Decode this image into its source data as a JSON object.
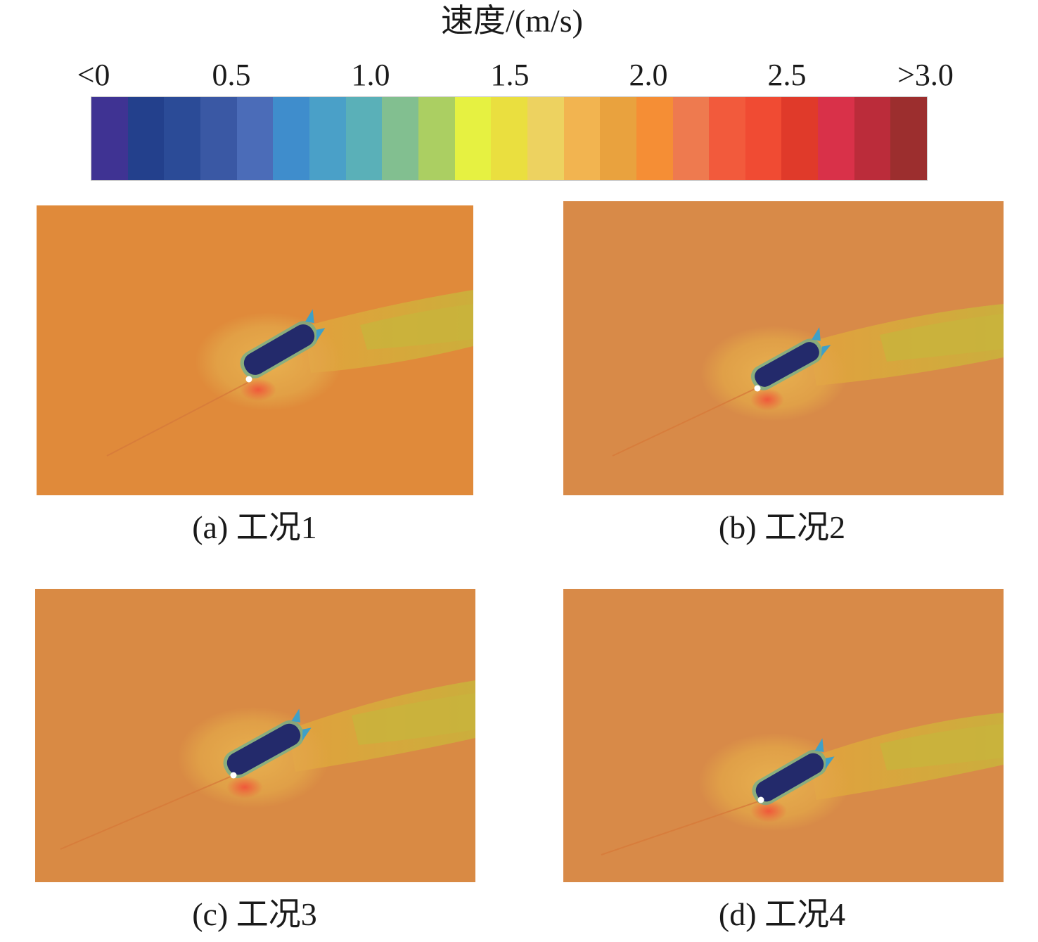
{
  "colorbar": {
    "title": "速度/(m/s)",
    "ticks": [
      "<0",
      "0.5",
      "1.0",
      "1.5",
      "2.0",
      "2.5",
      ">3.0"
    ],
    "colors": [
      "#3f3393",
      "#23408c",
      "#2b4b97",
      "#3a58a4",
      "#4b6cb8",
      "#3f8dcc",
      "#4aa0c8",
      "#5ab0b8",
      "#82bf90",
      "#abcf62",
      "#e6f141",
      "#eadf3f",
      "#edd260",
      "#f2b450",
      "#e9a23e",
      "#f58e35",
      "#ee7a4f",
      "#f25a3c",
      "#f04b33",
      "#e03a2a",
      "#d93149",
      "#bb2c3a",
      "#9c2e2e"
    ]
  },
  "panels": [
    {
      "id": "a",
      "caption": "(a) 工况1",
      "background": "#e08a3a"
    },
    {
      "id": "b",
      "caption": "(b) 工况2",
      "background": "#d88a48"
    },
    {
      "id": "c",
      "caption": "(c) 工况3",
      "background": "#d98a44"
    },
    {
      "id": "d",
      "caption": "(d) 工况4",
      "background": "#d88a48"
    }
  ]
}
